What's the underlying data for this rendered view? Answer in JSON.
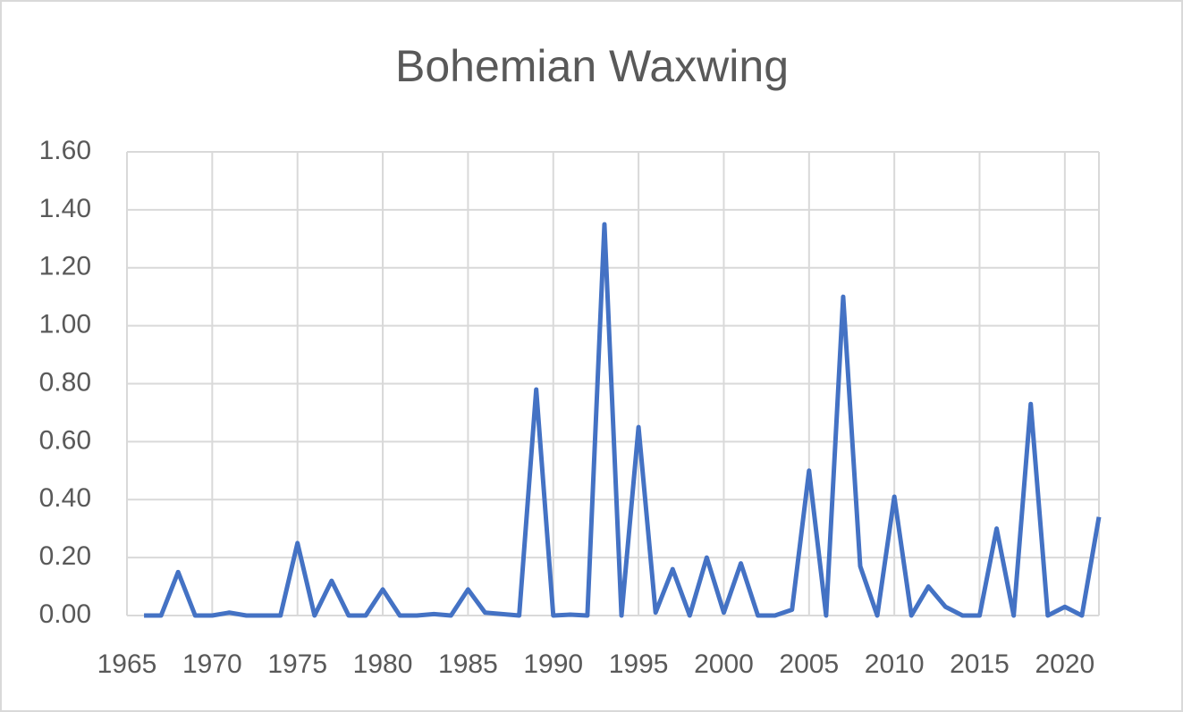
{
  "chart_data": {
    "type": "line",
    "title": "Bohemian Waxwing",
    "x": [
      1966,
      1967,
      1968,
      1969,
      1970,
      1971,
      1972,
      1973,
      1974,
      1975,
      1976,
      1977,
      1978,
      1979,
      1980,
      1981,
      1982,
      1983,
      1984,
      1985,
      1986,
      1987,
      1988,
      1989,
      1990,
      1991,
      1992,
      1993,
      1994,
      1995,
      1996,
      1997,
      1998,
      1999,
      2000,
      2001,
      2002,
      2003,
      2004,
      2005,
      2006,
      2007,
      2008,
      2009,
      2010,
      2011,
      2012,
      2013,
      2014,
      2015,
      2016,
      2017,
      2018,
      2019,
      2020,
      2021,
      2022
    ],
    "series": [
      {
        "name": "Bohemian Waxwing",
        "color": "#4472c4",
        "values": [
          0,
          0,
          0.15,
          0,
          0,
          0.01,
          0,
          0,
          0,
          0.25,
          0,
          0.12,
          0,
          0,
          0.09,
          0,
          0,
          0.005,
          0,
          0.09,
          0.01,
          0.005,
          0,
          0.78,
          0,
          0.003,
          0,
          1.35,
          0,
          0.65,
          0.01,
          0.16,
          0,
          0.2,
          0.01,
          0.18,
          0,
          0,
          0.02,
          0.5,
          0,
          1.1,
          0.17,
          0,
          0.41,
          0,
          0.1,
          0.03,
          0,
          0,
          0.3,
          0,
          0.73,
          0,
          0.03,
          0,
          0.34
        ]
      }
    ],
    "xlim": [
      1965,
      2022
    ],
    "xticks": [
      1965,
      1970,
      1975,
      1980,
      1985,
      1990,
      1995,
      2000,
      2005,
      2010,
      2015,
      2020
    ],
    "ylim": [
      0,
      1.6
    ],
    "yticks": [
      {
        "value": 0,
        "label": "0.00"
      },
      {
        "value": 0.2,
        "label": "0.20"
      },
      {
        "value": 0.4,
        "label": "0.40"
      },
      {
        "value": 0.6,
        "label": "0.60"
      },
      {
        "value": 0.8,
        "label": "0.80"
      },
      {
        "value": 1.0,
        "label": "1.00"
      },
      {
        "value": 1.2,
        "label": "1.20"
      },
      {
        "value": 1.4,
        "label": "1.40"
      },
      {
        "value": 1.6,
        "label": "1.60"
      }
    ],
    "grid": true
  }
}
